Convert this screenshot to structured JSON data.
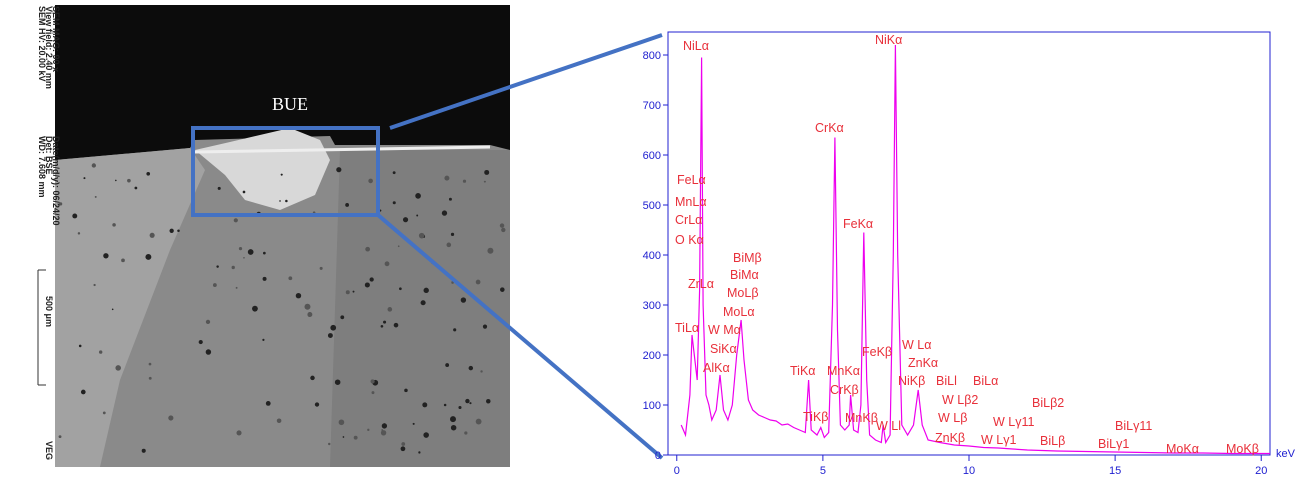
{
  "image_panel": {
    "label": "BUE",
    "info_lines": [
      "SEM HV: 20.00 kV",
      "View field: 2.40 mm",
      "SEM MAG: 90 x"
    ],
    "info_lines_2": [
      "WD: 7.608 mm",
      "Det: BSE",
      "Date(m/d/y): 06/24/20"
    ],
    "scale_bar": "500 μm",
    "brand": "VEG"
  },
  "chart_data": {
    "type": "line",
    "color": "#ee00ee",
    "xlabel": "keV",
    "xlim": [
      -0.3,
      20.3
    ],
    "ylim": [
      0,
      846
    ],
    "xticks": [
      0,
      5,
      10,
      15,
      20
    ],
    "yticks": [
      0,
      100,
      200,
      300,
      400,
      500,
      600,
      700,
      800
    ],
    "x": [
      0.15,
      0.3,
      0.45,
      0.52,
      0.6,
      0.7,
      0.78,
      0.85,
      0.9,
      1.0,
      1.1,
      1.2,
      1.35,
      1.48,
      1.6,
      1.75,
      1.9,
      2.05,
      2.2,
      2.3,
      2.45,
      2.6,
      2.8,
      3.0,
      3.2,
      3.4,
      3.6,
      3.8,
      4.0,
      4.2,
      4.4,
      4.51,
      4.6,
      4.8,
      4.93,
      5.05,
      5.2,
      5.33,
      5.41,
      5.5,
      5.6,
      5.75,
      5.9,
      5.95,
      6.05,
      6.2,
      6.3,
      6.4,
      6.5,
      6.6,
      6.8,
      7.0,
      7.06,
      7.15,
      7.3,
      7.41,
      7.48,
      7.56,
      7.7,
      7.9,
      8.1,
      8.26,
      8.4,
      8.6,
      9.0,
      9.5,
      10.0,
      10.5,
      11.0,
      11.5,
      12,
      13,
      14,
      15,
      16,
      17,
      18,
      19,
      20,
      20.3
    ],
    "values": [
      60,
      40,
      120,
      240,
      200,
      150,
      330,
      795,
      300,
      120,
      100,
      70,
      90,
      160,
      90,
      70,
      100,
      200,
      270,
      190,
      110,
      90,
      80,
      75,
      70,
      68,
      60,
      62,
      55,
      50,
      45,
      150,
      50,
      40,
      55,
      35,
      45,
      300,
      635,
      250,
      60,
      50,
      60,
      120,
      50,
      45,
      100,
      445,
      150,
      40,
      30,
      25,
      60,
      25,
      40,
      400,
      820,
      400,
      60,
      40,
      60,
      130,
      60,
      30,
      25,
      20,
      18,
      15,
      14,
      12,
      10,
      8,
      7,
      6,
      5,
      4,
      4,
      3,
      3,
      3
    ],
    "peak_labels": [
      "NiLα",
      "NiKα",
      "FeLα",
      "MnLα",
      "CrLα",
      "O Kα",
      "BiMβ",
      "BiMα",
      "ZrLα",
      "MoLβ",
      "MoLα",
      "TiLα",
      "W Mα",
      "SiKα",
      "AlKα",
      "CrKα",
      "FeKα",
      "FeKβ",
      "W Lα",
      "ZnKα",
      "TiKα",
      "MnKα",
      "NiKβ",
      "BiLl",
      "BiLα",
      "CrKβ",
      "W Lβ2",
      "BiLβ2",
      "TiKβ",
      "W Lβ",
      "W Lγ11",
      "BiLγ11",
      "MnKβ",
      "W Ll",
      "ZnKβ",
      "W Lγ1",
      "BiLβ",
      "BiLγ1",
      "MoKα",
      "MoKβ"
    ]
  }
}
